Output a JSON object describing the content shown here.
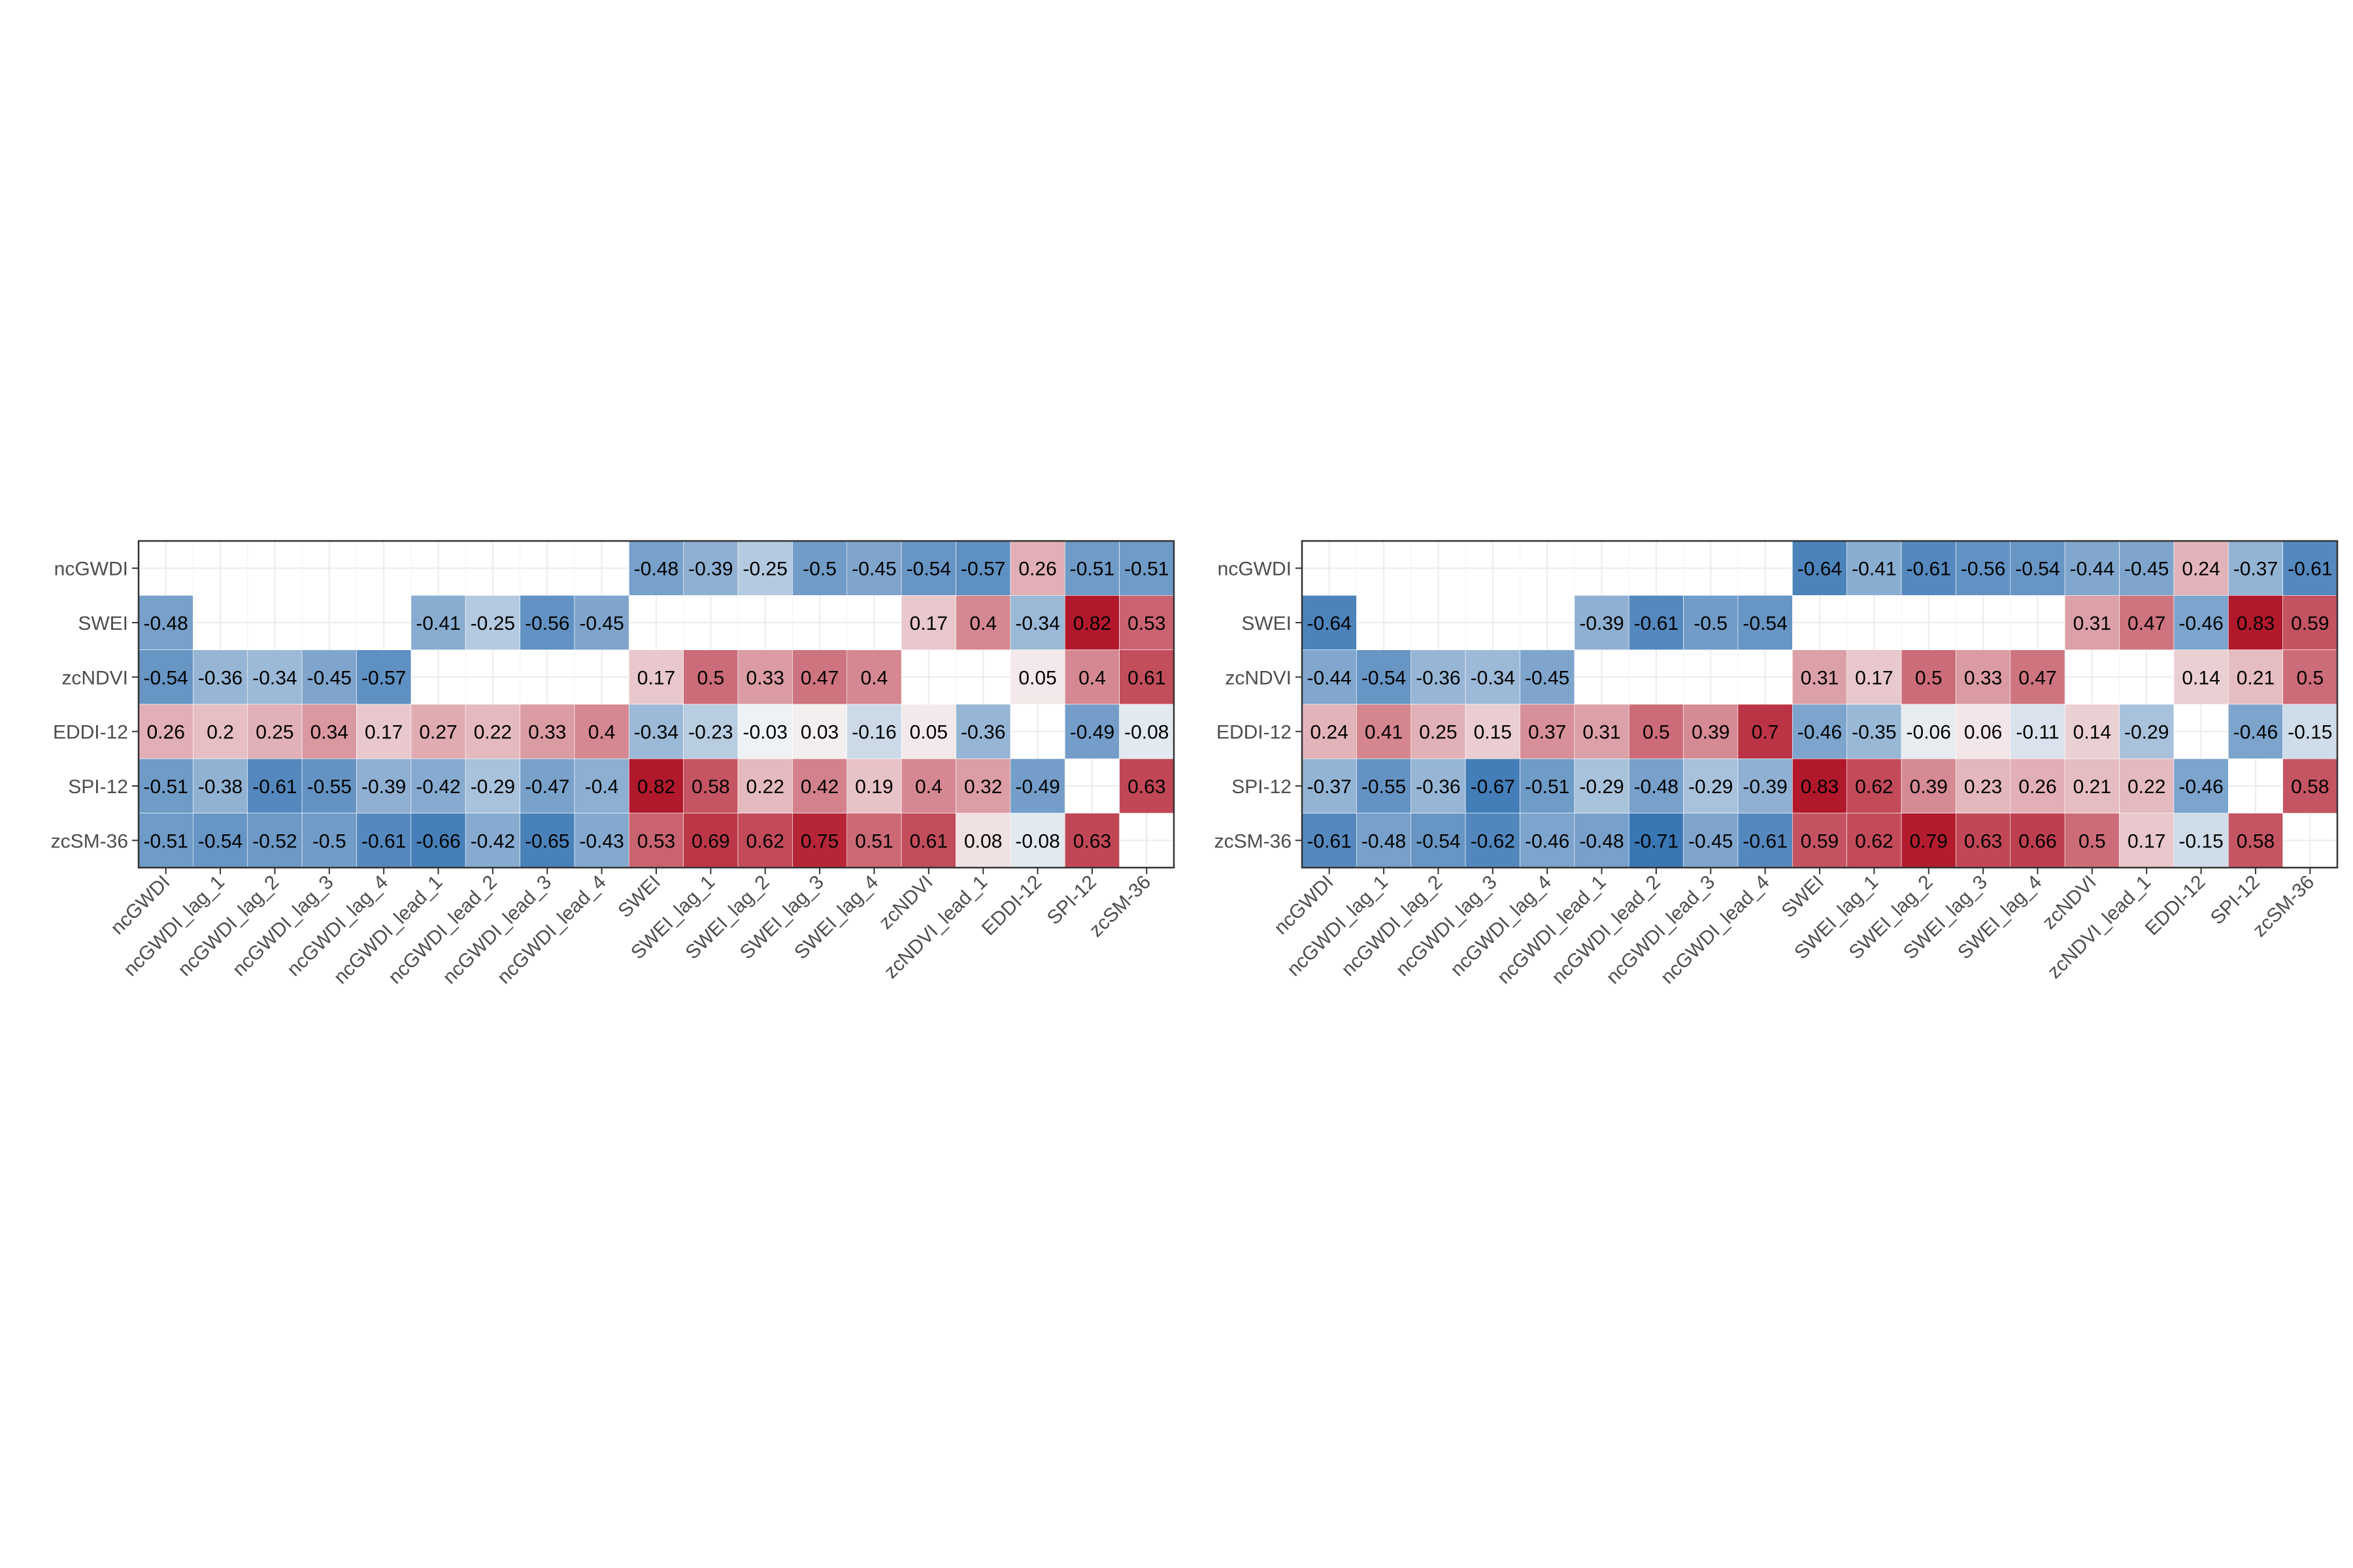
{
  "chart_data": [
    {
      "type": "heatmap",
      "title": "",
      "xlabel": "",
      "ylabel": "",
      "x": [
        "ncGWDI",
        "ncGWDI_lag_1",
        "ncGWDI_lag_2",
        "ncGWDI_lag_3",
        "ncGWDI_lag_4",
        "ncGWDI_lead_1",
        "ncGWDI_lead_2",
        "ncGWDI_lead_3",
        "ncGWDI_lead_4",
        "SWEI",
        "SWEI_lag_1",
        "SWEI_lag_2",
        "SWEI_lag_3",
        "SWEI_lag_4",
        "zcNDVI",
        "zcNDVI_lead_1",
        "EDDI-12",
        "SPI-12",
        "zcSM-36"
      ],
      "y": [
        "ncGWDI",
        "SWEI",
        "zcNDVI",
        "EDDI-12",
        "SPI-12",
        "zcSM-36"
      ],
      "values": [
        [
          null,
          null,
          null,
          null,
          null,
          null,
          null,
          null,
          null,
          -0.48,
          -0.39,
          -0.25,
          -0.5,
          -0.45,
          -0.54,
          -0.57,
          0.26,
          -0.51,
          -0.51
        ],
        [
          -0.48,
          null,
          null,
          null,
          null,
          -0.41,
          -0.25,
          -0.56,
          -0.45,
          null,
          null,
          null,
          null,
          null,
          0.17,
          0.4,
          -0.34,
          0.82,
          0.53
        ],
        [
          -0.54,
          -0.36,
          -0.34,
          -0.45,
          -0.57,
          null,
          null,
          null,
          null,
          0.17,
          0.5,
          0.33,
          0.47,
          0.4,
          null,
          null,
          0.05,
          0.4,
          0.61
        ],
        [
          0.26,
          0.2,
          0.25,
          0.34,
          0.17,
          0.27,
          0.22,
          0.33,
          0.4,
          -0.34,
          -0.23,
          -0.03,
          0.03,
          -0.16,
          0.05,
          -0.36,
          null,
          -0.49,
          -0.08
        ],
        [
          -0.51,
          -0.38,
          -0.61,
          -0.55,
          -0.39,
          -0.42,
          -0.29,
          -0.47,
          -0.4,
          0.82,
          0.58,
          0.22,
          0.42,
          0.19,
          0.4,
          0.32,
          -0.49,
          null,
          0.63
        ],
        [
          -0.51,
          -0.54,
          -0.52,
          -0.5,
          -0.61,
          -0.66,
          -0.42,
          -0.65,
          -0.43,
          0.53,
          0.69,
          0.62,
          0.75,
          0.51,
          0.61,
          0.08,
          -0.08,
          0.63,
          null
        ]
      ],
      "color_scale": {
        "low": "#2166ac",
        "mid": "#f7f7f7",
        "high": "#b2182b",
        "range": [
          -0.8,
          0.8
        ]
      }
    },
    {
      "type": "heatmap",
      "title": "",
      "xlabel": "",
      "ylabel": "",
      "x": [
        "ncGWDI",
        "ncGWDI_lag_1",
        "ncGWDI_lag_2",
        "ncGWDI_lag_3",
        "ncGWDI_lag_4",
        "ncGWDI_lead_1",
        "ncGWDI_lead_2",
        "ncGWDI_lead_3",
        "ncGWDI_lead_4",
        "SWEI",
        "SWEI_lag_1",
        "SWEI_lag_2",
        "SWEI_lag_3",
        "SWEI_lag_4",
        "zcNDVI",
        "zcNDVI_lead_1",
        "EDDI-12",
        "SPI-12",
        "zcSM-36"
      ],
      "y": [
        "ncGWDI",
        "SWEI",
        "zcNDVI",
        "EDDI-12",
        "SPI-12",
        "zcSM-36"
      ],
      "values": [
        [
          null,
          null,
          null,
          null,
          null,
          null,
          null,
          null,
          null,
          -0.64,
          -0.41,
          -0.61,
          -0.56,
          -0.54,
          -0.44,
          -0.45,
          0.24,
          -0.37,
          -0.61
        ],
        [
          -0.64,
          null,
          null,
          null,
          null,
          -0.39,
          -0.61,
          -0.5,
          -0.54,
          null,
          null,
          null,
          null,
          null,
          0.31,
          0.47,
          -0.46,
          0.83,
          0.59
        ],
        [
          -0.44,
          -0.54,
          -0.36,
          -0.34,
          -0.45,
          null,
          null,
          null,
          null,
          0.31,
          0.17,
          0.5,
          0.33,
          0.47,
          null,
          null,
          0.14,
          0.21,
          0.5
        ],
        [
          0.24,
          0.41,
          0.25,
          0.15,
          0.37,
          0.31,
          0.5,
          0.39,
          0.7,
          -0.46,
          -0.35,
          -0.06,
          0.06,
          -0.11,
          0.14,
          -0.29,
          null,
          -0.46,
          -0.15
        ],
        [
          -0.37,
          -0.55,
          -0.36,
          -0.67,
          -0.51,
          -0.29,
          -0.48,
          -0.29,
          -0.39,
          0.83,
          0.62,
          0.39,
          0.23,
          0.26,
          0.21,
          0.22,
          -0.46,
          null,
          0.58
        ],
        [
          -0.61,
          -0.48,
          -0.54,
          -0.62,
          -0.46,
          -0.48,
          -0.71,
          -0.45,
          -0.61,
          0.59,
          0.62,
          0.79,
          0.63,
          0.66,
          0.5,
          0.17,
          -0.15,
          0.58,
          null
        ]
      ],
      "color_scale": {
        "low": "#2166ac",
        "mid": "#f7f7f7",
        "high": "#b2182b",
        "range": [
          -0.8,
          0.8
        ]
      }
    }
  ]
}
